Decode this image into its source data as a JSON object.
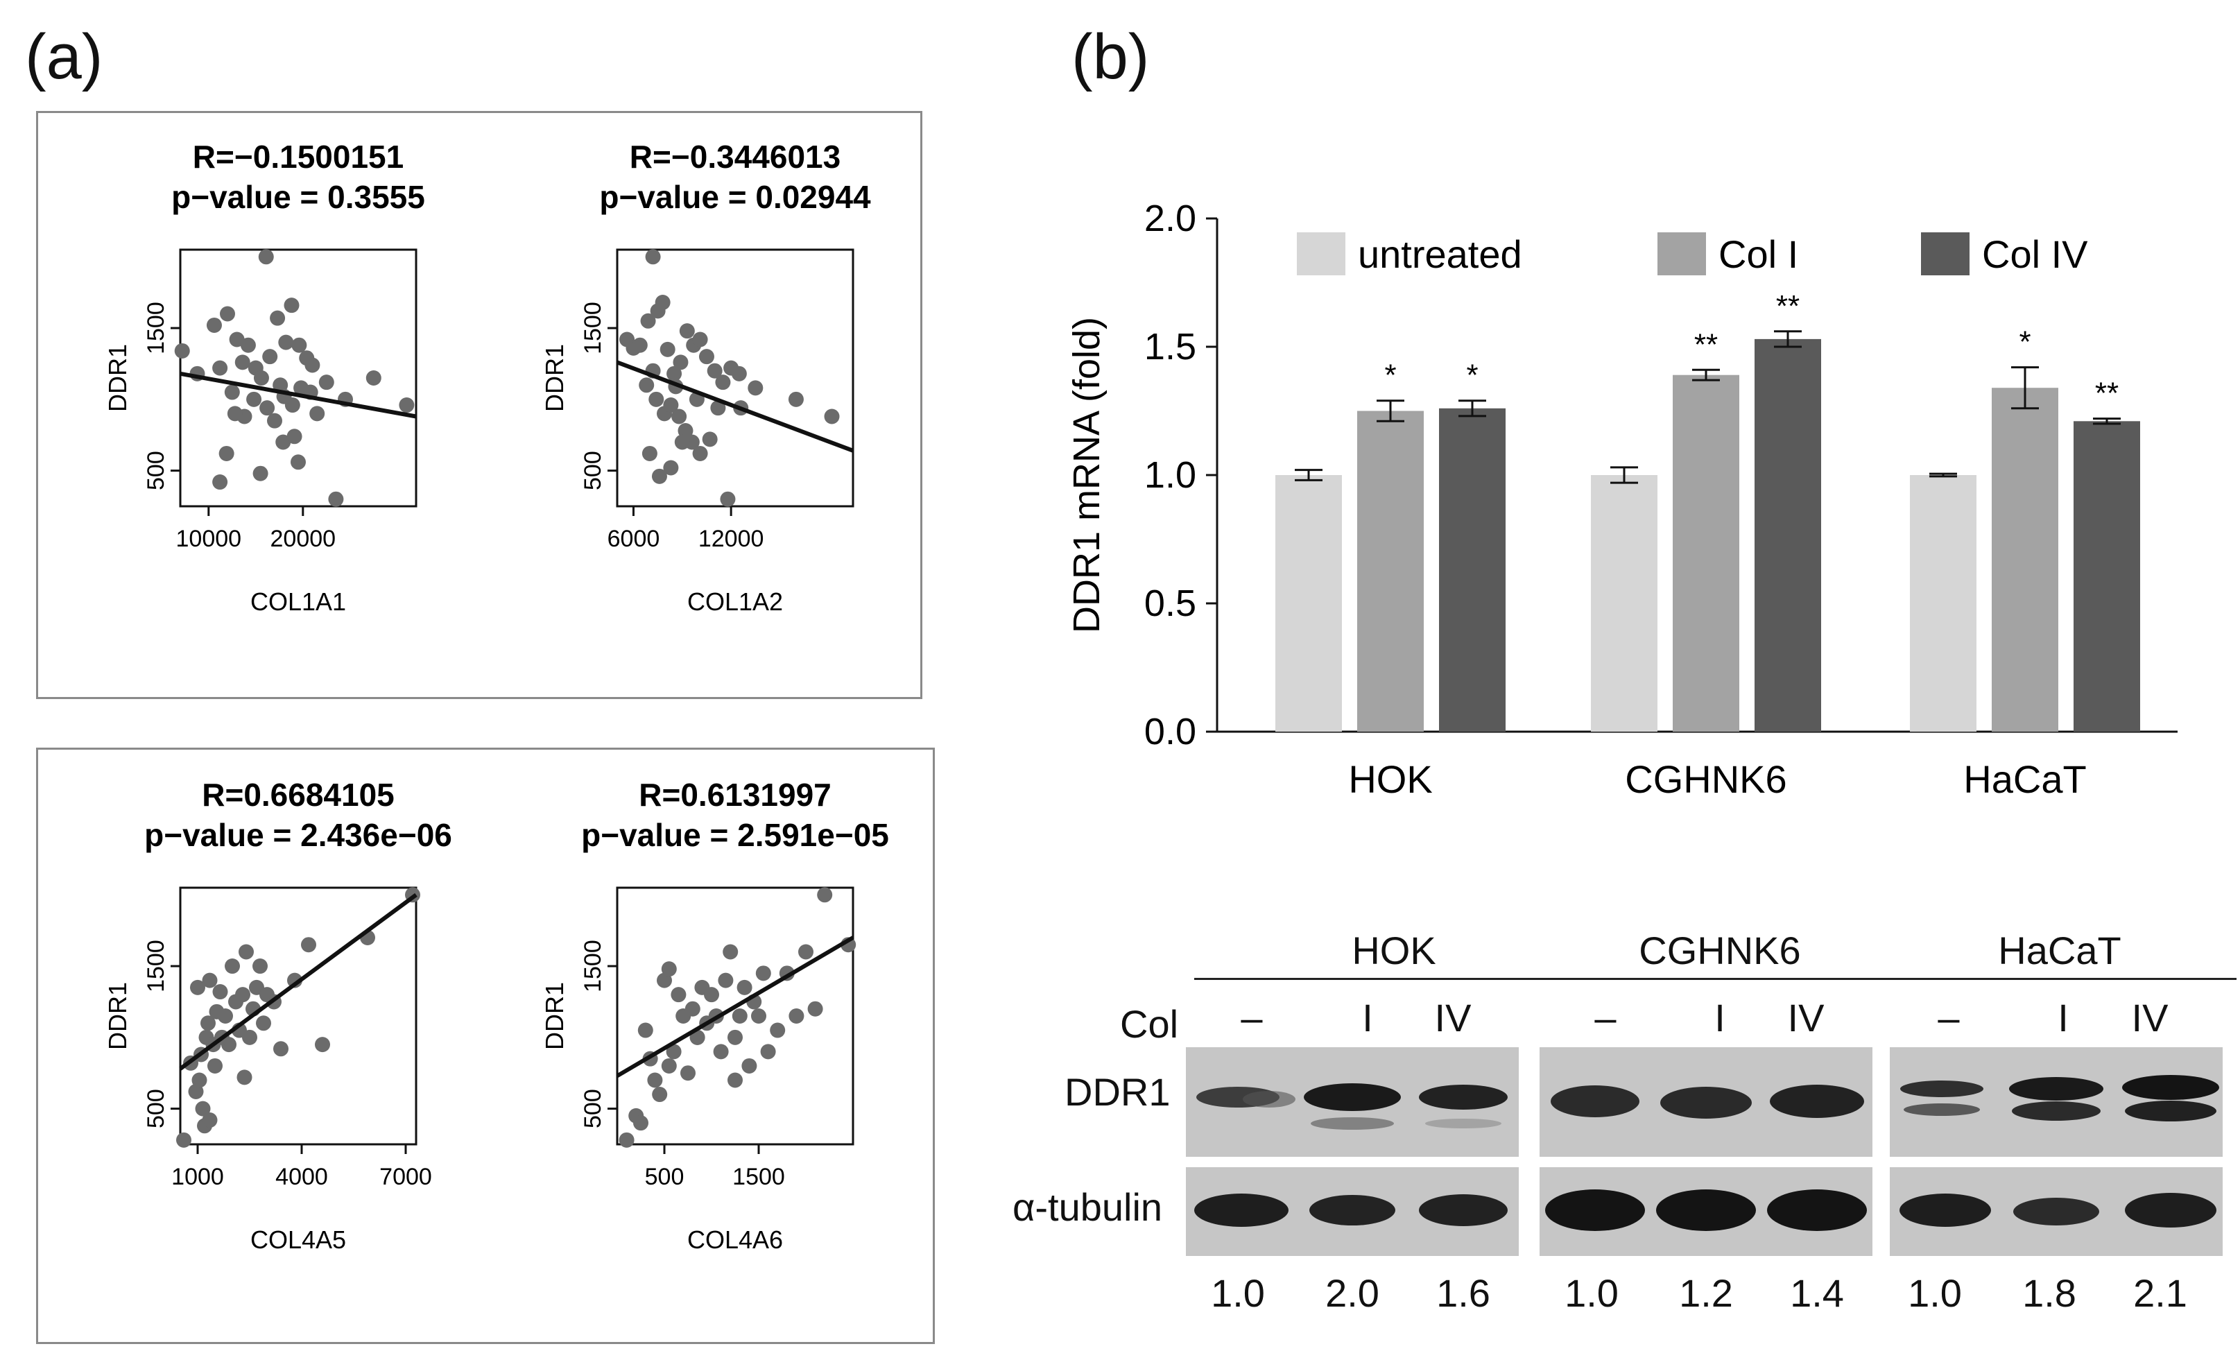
{
  "panel_a_label": "(a)",
  "panel_b_label": "(b)",
  "chart_data": [
    {
      "type": "scatter",
      "title": "R=−0.1500151",
      "subtitle": "p−value = 0.3555",
      "xlabel": "COL1A1",
      "ylabel": "DDR1",
      "xlim": [
        7000,
        32000
      ],
      "ylim": [
        250,
        2050
      ],
      "xticks": [
        10000,
        20000
      ],
      "xtick_labels": [
        "10000",
        "20000"
      ],
      "yticks": [
        500,
        1500
      ],
      "ytick_labels": [
        "500",
        "1500"
      ],
      "points": [
        [
          7200,
          1340
        ],
        [
          8800,
          1180
        ],
        [
          10600,
          1520
        ],
        [
          11200,
          1220
        ],
        [
          12000,
          1600
        ],
        [
          13000,
          1420
        ],
        [
          13600,
          1260
        ],
        [
          14200,
          1380
        ],
        [
          15000,
          1220
        ],
        [
          15600,
          1150
        ],
        [
          16500,
          1300
        ],
        [
          17300,
          1570
        ],
        [
          18200,
          1400
        ],
        [
          18800,
          1660
        ],
        [
          19600,
          1380
        ],
        [
          20400,
          1290
        ],
        [
          21000,
          1240
        ],
        [
          20800,
          1050
        ],
        [
          19800,
          1080
        ],
        [
          18900,
          960
        ],
        [
          18000,
          1020
        ],
        [
          17000,
          850
        ],
        [
          16200,
          940
        ],
        [
          14800,
          1000
        ],
        [
          13800,
          880
        ],
        [
          12800,
          900
        ],
        [
          11900,
          620
        ],
        [
          11200,
          420
        ],
        [
          16100,
          2000
        ],
        [
          15500,
          480
        ],
        [
          17900,
          700
        ],
        [
          19500,
          560
        ],
        [
          21500,
          900
        ],
        [
          23500,
          300
        ],
        [
          24500,
          1000
        ],
        [
          27500,
          1150
        ],
        [
          31000,
          960
        ],
        [
          12500,
          1050
        ],
        [
          22500,
          1120
        ],
        [
          17600,
          1100
        ],
        [
          19100,
          740
        ]
      ],
      "fit": [
        [
          7000,
          1180
        ],
        [
          32000,
          880
        ]
      ]
    },
    {
      "type": "scatter",
      "title": "R=−0.3446013",
      "subtitle": "p−value = 0.02944",
      "xlabel": "COL1A2",
      "ylabel": "DDR1",
      "xlim": [
        5000,
        19500
      ],
      "ylim": [
        250,
        2050
      ],
      "xticks": [
        6000,
        12000
      ],
      "xtick_labels": [
        "6000",
        "12000"
      ],
      "yticks": [
        500,
        1500
      ],
      "ytick_labels": [
        "500",
        "1500"
      ],
      "points": [
        [
          5600,
          1420
        ],
        [
          6000,
          1360
        ],
        [
          6400,
          1380
        ],
        [
          6900,
          1550
        ],
        [
          7200,
          2000
        ],
        [
          7500,
          1620
        ],
        [
          7800,
          1680
        ],
        [
          8100,
          1350
        ],
        [
          8500,
          1180
        ],
        [
          8900,
          1260
        ],
        [
          9300,
          1480
        ],
        [
          9700,
          1380
        ],
        [
          10100,
          1420
        ],
        [
          10500,
          1300
        ],
        [
          11000,
          1200
        ],
        [
          11500,
          1120
        ],
        [
          12000,
          1220
        ],
        [
          12500,
          1180
        ],
        [
          6800,
          1100
        ],
        [
          7400,
          1000
        ],
        [
          7900,
          900
        ],
        [
          8300,
          960
        ],
        [
          8800,
          880
        ],
        [
          9200,
          780
        ],
        [
          9600,
          700
        ],
        [
          10100,
          620
        ],
        [
          10700,
          720
        ],
        [
          7000,
          620
        ],
        [
          7600,
          460
        ],
        [
          8300,
          520
        ],
        [
          9000,
          700
        ],
        [
          11200,
          940
        ],
        [
          11800,
          300
        ],
        [
          13500,
          1080
        ],
        [
          16000,
          1000
        ],
        [
          18200,
          880
        ],
        [
          7200,
          1200
        ],
        [
          9900,
          1000
        ],
        [
          12600,
          940
        ],
        [
          8600,
          1090
        ]
      ],
      "fit": [
        [
          5000,
          1260
        ],
        [
          19500,
          640
        ]
      ]
    },
    {
      "type": "scatter",
      "title": "R=0.6684105",
      "subtitle": "p−value = 2.436e−06",
      "xlabel": "COL4A5",
      "ylabel": "DDR1",
      "xlim": [
        500,
        7300
      ],
      "ylim": [
        250,
        2050
      ],
      "xticks": [
        1000,
        4000,
        7000
      ],
      "xtick_labels": [
        "1000",
        "4000",
        "7000"
      ],
      "yticks": [
        500,
        1500
      ],
      "ytick_labels": [
        "500",
        "1500"
      ],
      "points": [
        [
          600,
          280
        ],
        [
          800,
          820
        ],
        [
          950,
          620
        ],
        [
          1000,
          1350
        ],
        [
          1100,
          880
        ],
        [
          1150,
          500
        ],
        [
          1200,
          380
        ],
        [
          1250,
          1000
        ],
        [
          1300,
          1100
        ],
        [
          1350,
          1400
        ],
        [
          1450,
          950
        ],
        [
          1550,
          1180
        ],
        [
          1650,
          1320
        ],
        [
          1800,
          1150
        ],
        [
          1900,
          950
        ],
        [
          2000,
          1500
        ],
        [
          2100,
          1250
        ],
        [
          2200,
          1050
        ],
        [
          2300,
          1300
        ],
        [
          2400,
          1600
        ],
        [
          2500,
          1000
        ],
        [
          2600,
          1200
        ],
        [
          2700,
          1350
        ],
        [
          2800,
          1500
        ],
        [
          2900,
          1100
        ],
        [
          3000,
          1300
        ],
        [
          3200,
          1250
        ],
        [
          3400,
          920
        ],
        [
          3800,
          1400
        ],
        [
          4200,
          1650
        ],
        [
          4600,
          950
        ],
        [
          1050,
          700
        ],
        [
          1350,
          420
        ],
        [
          1700,
          1000
        ],
        [
          2350,
          720
        ],
        [
          5900,
          1700
        ],
        [
          7200,
          2000
        ],
        [
          1500,
          800
        ]
      ],
      "fit": [
        [
          500,
          780
        ],
        [
          7300,
          2000
        ]
      ]
    },
    {
      "type": "scatter",
      "title": "R=0.6131997",
      "subtitle": "p−value = 2.591e−05",
      "xlabel": "COL4A6",
      "ylabel": "DDR1",
      "xlim": [
        0,
        2500
      ],
      "ylim": [
        250,
        2050
      ],
      "xticks": [
        500,
        1500
      ],
      "xtick_labels": [
        "500",
        "1500"
      ],
      "yticks": [
        500,
        1500
      ],
      "ytick_labels": [
        "500",
        "1500"
      ],
      "points": [
        [
          100,
          280
        ],
        [
          200,
          450
        ],
        [
          250,
          400
        ],
        [
          300,
          1050
        ],
        [
          350,
          850
        ],
        [
          400,
          700
        ],
        [
          450,
          600
        ],
        [
          500,
          1400
        ],
        [
          550,
          800
        ],
        [
          600,
          900
        ],
        [
          650,
          1300
        ],
        [
          700,
          1150
        ],
        [
          750,
          750
        ],
        [
          800,
          1200
        ],
        [
          850,
          1000
        ],
        [
          900,
          1350
        ],
        [
          950,
          1100
        ],
        [
          1000,
          1300
        ],
        [
          1050,
          1150
        ],
        [
          1100,
          900
        ],
        [
          1150,
          1400
        ],
        [
          1200,
          1600
        ],
        [
          1250,
          1000
        ],
        [
          1300,
          1150
        ],
        [
          1350,
          1350
        ],
        [
          1400,
          800
        ],
        [
          1450,
          1250
        ],
        [
          1500,
          1150
        ],
        [
          1550,
          1450
        ],
        [
          1600,
          900
        ],
        [
          1700,
          1050
        ],
        [
          1800,
          1450
        ],
        [
          1900,
          1150
        ],
        [
          2000,
          1600
        ],
        [
          2100,
          1200
        ],
        [
          2200,
          2000
        ],
        [
          2450,
          1650
        ],
        [
          550,
          1480
        ],
        [
          1250,
          700
        ],
        [
          850,
          1000
        ]
      ],
      "fit": [
        [
          0,
          730
        ],
        [
          2500,
          1700
        ]
      ]
    },
    {
      "type": "bar",
      "title": "",
      "ylabel": "DDR1  mRNA  (fold)",
      "ylim": [
        0,
        2.0
      ],
      "yticks": [
        0.0,
        0.5,
        1.0,
        1.5,
        2.0
      ],
      "ytick_labels": [
        "0.0",
        "0.5",
        "1.0",
        "1.5",
        "2.0"
      ],
      "categories": [
        "HOK",
        "CGHNK6",
        "HaCaT"
      ],
      "series": [
        {
          "name": "untreated",
          "color": "#d6d6d6",
          "values": [
            1.0,
            1.0,
            1.0
          ],
          "errors": [
            0.02,
            0.03,
            0.005
          ],
          "sig": [
            "",
            "",
            ""
          ]
        },
        {
          "name": "Col I",
          "color": "#a3a3a3",
          "values": [
            1.25,
            1.39,
            1.34
          ],
          "errors": [
            0.04,
            0.02,
            0.08
          ],
          "sig": [
            "*",
            "**",
            "*"
          ]
        },
        {
          "name": "Col IV",
          "color": "#5a5a5a",
          "values": [
            1.26,
            1.53,
            1.21
          ],
          "errors": [
            0.03,
            0.03,
            0.01
          ],
          "sig": [
            "*",
            "**",
            "**"
          ]
        }
      ],
      "legend_position": "top"
    }
  ],
  "western_blot": {
    "row_label_col": "Col",
    "row_label_ddr1": "DDR1",
    "row_label_tubulin": "α-tubulin",
    "groups": [
      {
        "name": "HOK",
        "lanes": [
          "–",
          "I",
          "IV"
        ],
        "ratios": [
          "1.0",
          "2.0",
          "1.6"
        ]
      },
      {
        "name": "CGHNK6",
        "lanes": [
          "–",
          "I",
          "IV"
        ],
        "ratios": [
          "1.0",
          "1.2",
          "1.4"
        ]
      },
      {
        "name": "HaCaT",
        "lanes": [
          "–",
          "I",
          "IV"
        ],
        "ratios": [
          "1.0",
          "1.8",
          "2.1"
        ]
      }
    ]
  }
}
